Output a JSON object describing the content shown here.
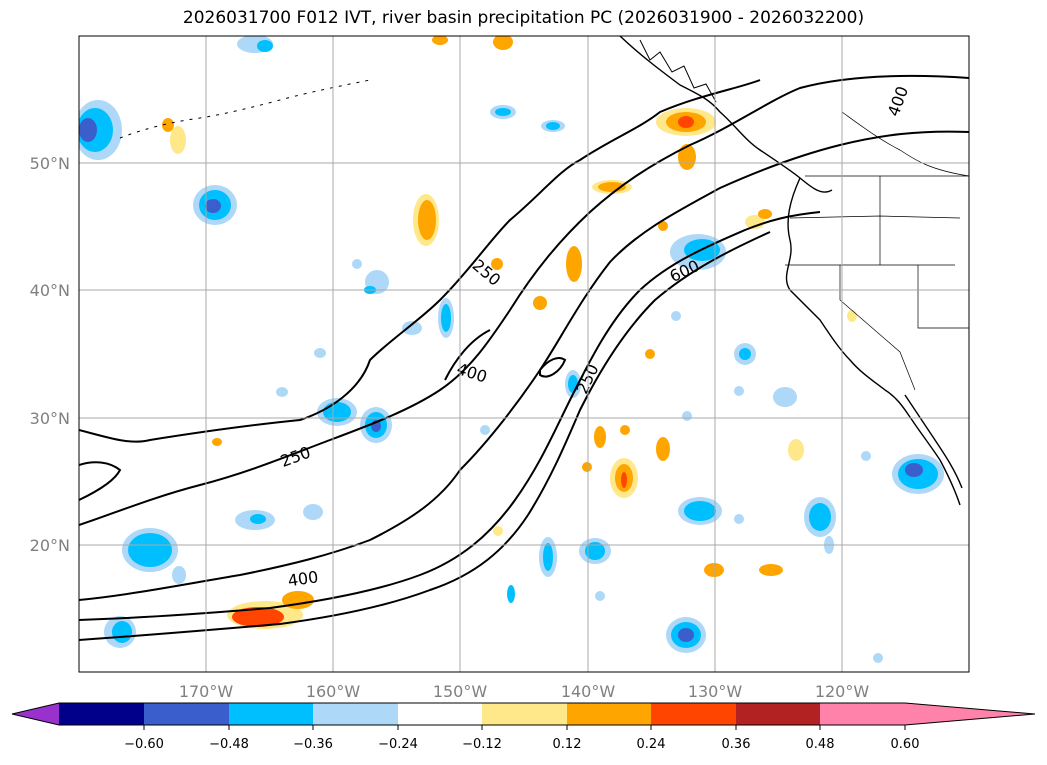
{
  "title": "2026031700 F012 IVT, river basin precipitation PC (2026031900 - 2026032200)",
  "map": {
    "lon_labels": [
      "170°W",
      "160°W",
      "150°W",
      "140°W",
      "130°W",
      "120°W"
    ],
    "lat_labels": [
      "50°N",
      "40°N",
      "30°N",
      "20°N"
    ],
    "contour_labels": [
      "250",
      "250",
      "250",
      "400",
      "400",
      "400",
      "600"
    ]
  },
  "colorbar": {
    "tick_labels": [
      "−0.60",
      "−0.48",
      "−0.36",
      "−0.24",
      "−0.12",
      "0.12",
      "0.24",
      "0.36",
      "0.48",
      "0.60"
    ],
    "colors": [
      "#9932cc",
      "#00008b",
      "#3a5fcd",
      "#00bfff",
      "#add8f7",
      "#ffffff",
      "#ffe88a",
      "#ffa500",
      "#ff4500",
      "#b22222",
      "#ff82ab"
    ]
  },
  "colors": {
    "neg_strong": "#3a5fcd",
    "neg_mid": "#00bfff",
    "neg_weak": "#add8f7",
    "pos_weak": "#ffe88a",
    "pos_mid": "#ffa500",
    "pos_strong": "#ff4500",
    "grid": "#a9a9a9",
    "contour": "#000000"
  }
}
